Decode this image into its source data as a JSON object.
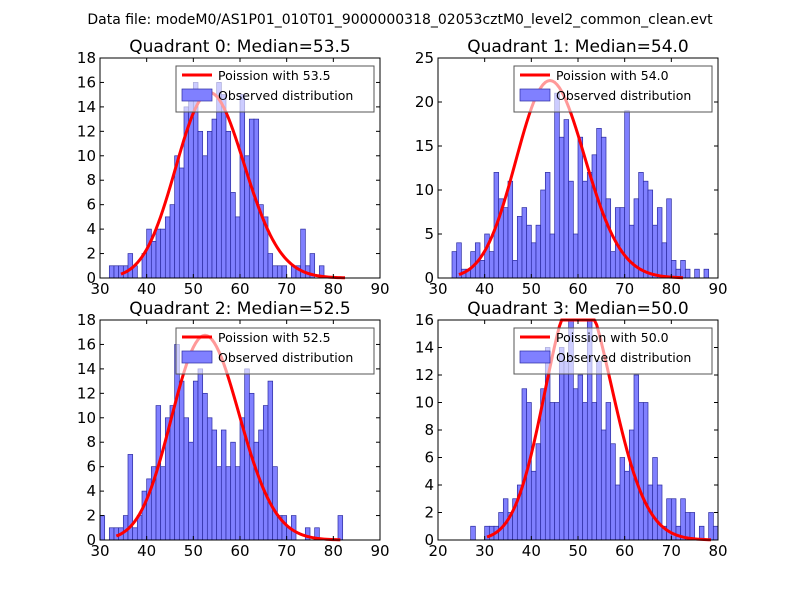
{
  "figure_title": "Data file: modeM0/AS1P01_010T01_9000000318_02053cztM0_level2_common_clean.evt",
  "colors": {
    "bar_fill": "#8080ff",
    "bar_edge": "#2a2aa0",
    "curve": "#ff0000",
    "axis": "#000000"
  },
  "chart_data": [
    {
      "type": "bar",
      "title": "Quadrant 0: Median=53.5",
      "xlim": [
        30,
        90
      ],
      "ylim": [
        0,
        18
      ],
      "xticks": [
        30,
        40,
        50,
        60,
        70,
        80,
        90
      ],
      "yticks": [
        0,
        2,
        4,
        6,
        8,
        10,
        12,
        14,
        16,
        18
      ],
      "bin_start": 30,
      "bin_width": 1,
      "counts": [
        0,
        0,
        1,
        1,
        1,
        1,
        2,
        1,
        0,
        2,
        4,
        3,
        4,
        4,
        5,
        6,
        10,
        9,
        14,
        15,
        16,
        12,
        10,
        12,
        13,
        16,
        15,
        12,
        7,
        5,
        15,
        10,
        13,
        13,
        6,
        5,
        2,
        1,
        1,
        1,
        0,
        1,
        1,
        4,
        1,
        2,
        0,
        1,
        0,
        0,
        0,
        0,
        0,
        0,
        0,
        0,
        0,
        0,
        0,
        0
      ],
      "curve_mean": 53.5,
      "legend": [
        {
          "label": "Poission with 53.5",
          "kind": "line"
        },
        {
          "label": "Observed distribution",
          "kind": "patch"
        }
      ]
    },
    {
      "type": "bar",
      "title": "Quadrant 1: Median=54.0",
      "xlim": [
        30,
        90
      ],
      "ylim": [
        0,
        25
      ],
      "xticks": [
        30,
        40,
        50,
        60,
        70,
        80,
        90
      ],
      "yticks": [
        0,
        5,
        10,
        15,
        20,
        25
      ],
      "bin_start": 30,
      "bin_width": 1,
      "counts": [
        0,
        0,
        0,
        3,
        4,
        1,
        1,
        3,
        4,
        2,
        5,
        3,
        12,
        9,
        8,
        11,
        2,
        7,
        8,
        6,
        4,
        6,
        10,
        12,
        5,
        21,
        16,
        18,
        11,
        5,
        16,
        11,
        12,
        14,
        17,
        16,
        9,
        3,
        8,
        8,
        19,
        6,
        9,
        12,
        11,
        10,
        6,
        8,
        4,
        9,
        2,
        1,
        2,
        1,
        0,
        1,
        0,
        1,
        0,
        0
      ],
      "curve_mean": 54.0,
      "legend": [
        {
          "label": "Poission with 54.0",
          "kind": "line"
        },
        {
          "label": "Observed distribution",
          "kind": "patch"
        }
      ]
    },
    {
      "type": "bar",
      "title": "Quadrant 2: Median=52.5",
      "xlim": [
        30,
        90
      ],
      "ylim": [
        0,
        18
      ],
      "xticks": [
        30,
        40,
        50,
        60,
        70,
        80,
        90
      ],
      "yticks": [
        0,
        2,
        4,
        6,
        8,
        10,
        12,
        14,
        16,
        18
      ],
      "bin_start": 30,
      "bin_width": 1,
      "counts": [
        2,
        0,
        1,
        1,
        1,
        2,
        7,
        1,
        2,
        4,
        5,
        6,
        11,
        6,
        10,
        11,
        16,
        13,
        10,
        8,
        13,
        14,
        12,
        10,
        9,
        6,
        9,
        6,
        8,
        6,
        10,
        14,
        12,
        8,
        9,
        11,
        13,
        6,
        2,
        2,
        1,
        2,
        0,
        0,
        1,
        0,
        1,
        0,
        0,
        0,
        0,
        2,
        0,
        0,
        0,
        0,
        0,
        0,
        0,
        0
      ],
      "curve_mean": 52.5,
      "legend": [
        {
          "label": "Poission with 52.5",
          "kind": "line"
        },
        {
          "label": "Observed distribution",
          "kind": "patch"
        }
      ]
    },
    {
      "type": "bar",
      "title": "Quadrant 3: Median=50.0",
      "xlim": [
        20,
        80
      ],
      "ylim": [
        0,
        16
      ],
      "xticks": [
        20,
        30,
        40,
        50,
        60,
        70,
        80
      ],
      "yticks": [
        0,
        2,
        4,
        6,
        8,
        10,
        12,
        14,
        16
      ],
      "bin_start": 20,
      "bin_width": 1,
      "counts": [
        0,
        0,
        0,
        0,
        0,
        0,
        0,
        1,
        0,
        0,
        1,
        1,
        1,
        2,
        3,
        2,
        3,
        4,
        11,
        10,
        5,
        7,
        11,
        14,
        10,
        10,
        14,
        13,
        16,
        11,
        12,
        10,
        16,
        10,
        13,
        8,
        10,
        7,
        4,
        6,
        5,
        8,
        12,
        10,
        10,
        4,
        6,
        4,
        1,
        3,
        3,
        1,
        3,
        2,
        2,
        0,
        1,
        0,
        2,
        1,
        0
      ],
      "curve_mean": 50.0,
      "legend": [
        {
          "label": "Poission with 50.0",
          "kind": "line"
        },
        {
          "label": "Observed distribution",
          "kind": "patch"
        }
      ]
    }
  ]
}
